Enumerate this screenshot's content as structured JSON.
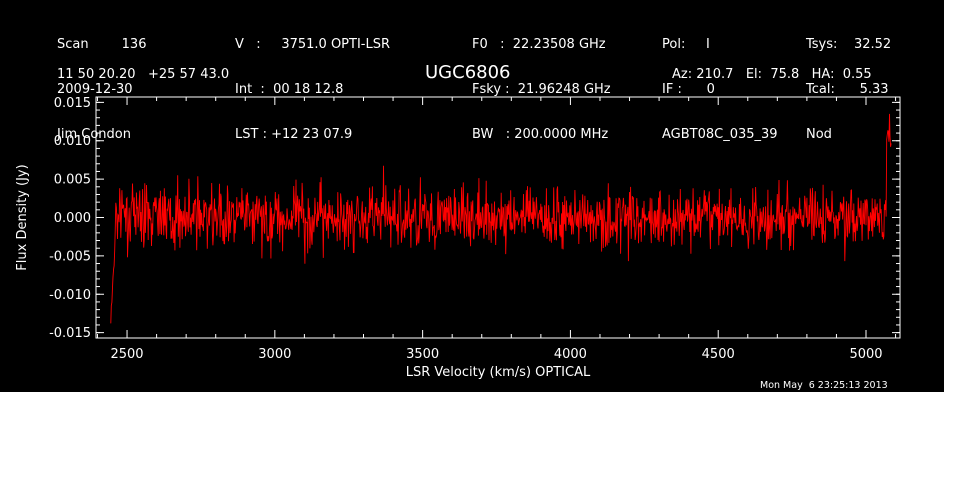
{
  "header": {
    "col1": [
      "Scan        136",
      "2009-12-30",
      "Jim Condon"
    ],
    "col2": [
      "V   :     3751.0 OPTI-LSR",
      "Int  :  00 18 12.8",
      "LST : +12 23 07.9"
    ],
    "col3": [
      "F0   :  22.23508 GHz",
      "Fsky :  21.96248 GHz",
      "BW   : 200.0000 MHz"
    ],
    "col4": [
      "Pol:     I",
      "IF :      0",
      "AGBT08C_035_39"
    ],
    "col5": [
      "Tsys:    32.52",
      "Tcal:      5.33",
      "Nod"
    ],
    "coords": "11 50 20.20   +25 57 43.0",
    "source": "UGC6806",
    "azelha": "Az: 210.7   El:  75.8   HA:  0.55",
    "timestamp": "Mon May  6 23:25:13 2013"
  },
  "chart_data": {
    "type": "line",
    "xlabel": "LSR Velocity (km/s) OPTICAL",
    "ylabel": "Flux Density (Jy)",
    "xlim": [
      2395,
      5115
    ],
    "ylim": [
      -0.0157,
      0.0157
    ],
    "xticks": [
      2500,
      3000,
      3500,
      4000,
      4500,
      5000
    ],
    "xtick_labels": [
      "2500",
      "3000",
      "3500",
      "4000",
      "4500",
      "5000"
    ],
    "yticks": [
      -0.015,
      -0.01,
      -0.005,
      0.0,
      0.005,
      0.01,
      0.015
    ],
    "ytick_labels": [
      "-0.015",
      "-0.010",
      "-0.005",
      "0.000",
      "0.005",
      "0.010",
      "0.015"
    ],
    "series": [
      {
        "color": "#ff0000",
        "x_start": 2445,
        "x_end": 5085,
        "n_points": 1400,
        "noise_rms_jy": 0.0032,
        "approx_min": -0.0138,
        "approx_max": 0.0135
      }
    ]
  }
}
